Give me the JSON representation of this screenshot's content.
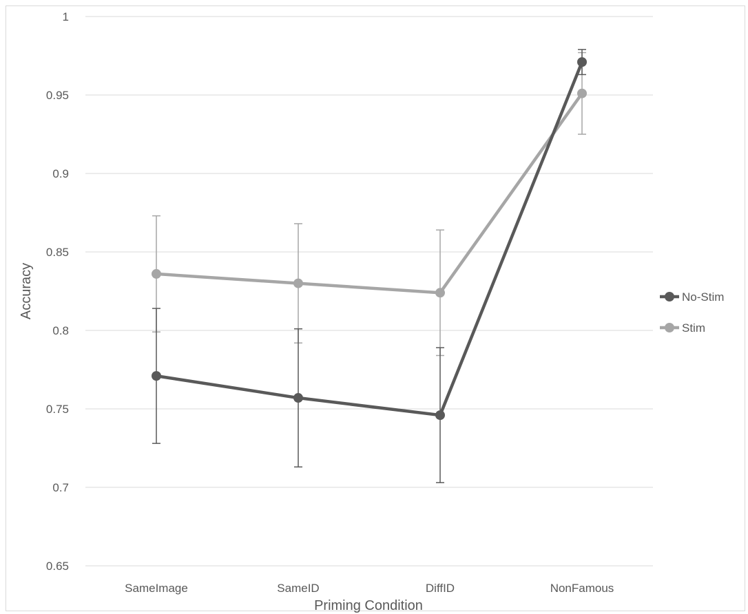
{
  "chart_data": {
    "type": "line",
    "categories": [
      "SameImage",
      "SameID",
      "DiffID",
      "NonFamous"
    ],
    "series": [
      {
        "name": "No-Stim",
        "color": "#595959",
        "values": [
          0.771,
          0.757,
          0.746,
          0.971
        ],
        "error_low": [
          0.728,
          0.713,
          0.703,
          0.963
        ],
        "error_high": [
          0.814,
          0.801,
          0.789,
          0.979
        ]
      },
      {
        "name": "Stim",
        "color": "#a6a6a6",
        "values": [
          0.836,
          0.83,
          0.824,
          0.951
        ],
        "error_low": [
          0.799,
          0.792,
          0.784,
          0.925
        ],
        "error_high": [
          0.873,
          0.868,
          0.864,
          0.977
        ]
      }
    ],
    "yticks": [
      "1",
      "0.95",
      "0.9",
      "0.85",
      "0.8",
      "0.75",
      "0.7",
      "0.65"
    ],
    "ylim": [
      0.65,
      1
    ],
    "xlabel": "Priming Condition",
    "ylabel": "Accuracy",
    "grid": true,
    "legend_position": "right",
    "gridline_color": "#d9d9d9"
  }
}
